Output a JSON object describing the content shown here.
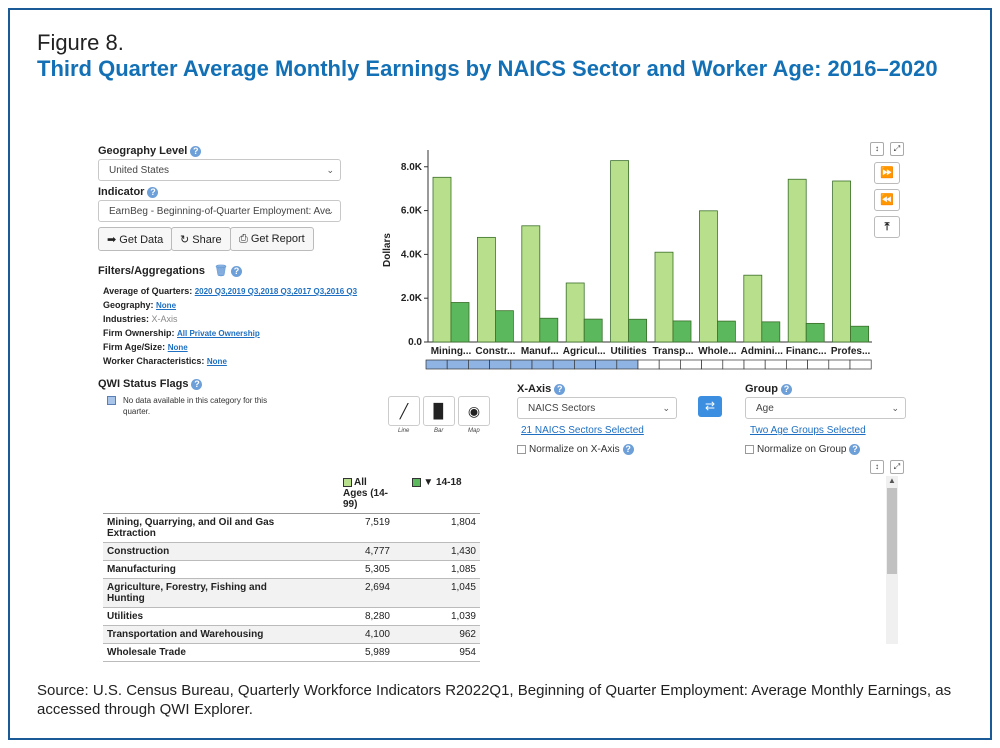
{
  "figure": {
    "label": "Figure 8.",
    "title": "Third Quarter Average Monthly Earnings by NAICS Sector and Worker Age: 2016–2020",
    "source": "Source: U.S. Census Bureau, Quarterly Workforce Indicators R2022Q1, Beginning of Quarter Employment: Average Monthly Earnings, as accessed through QWI Explorer."
  },
  "controls": {
    "geography_label": "Geography Level",
    "geography_value": "United States",
    "indicator_label": "Indicator",
    "indicator_value": "EarnBeg - Beginning-of-Quarter Employment: Ave",
    "get_data": "Get Data",
    "share": "Share",
    "get_report": "Get Report",
    "filters_label": "Filters/Aggregations",
    "filters": [
      {
        "key": "Average of Quarters:",
        "value": "2020 Q3,2019 Q3,2018 Q3,2017 Q3,2016 Q3",
        "style": "v"
      },
      {
        "key": "Geography:",
        "value": "None",
        "style": "v"
      },
      {
        "key": "Industries:",
        "value": "X-Axis",
        "style": "g"
      },
      {
        "key": "Firm Ownership:",
        "value": "All Private Ownership",
        "style": "v"
      },
      {
        "key": "Firm Age/Size:",
        "value": "None",
        "style": "v"
      },
      {
        "key": "Worker Characteristics:",
        "value": "None",
        "style": "v"
      }
    ],
    "status_label": "QWI Status Flags",
    "status_text_1": "No data available in this category for this",
    "status_text_2": "quarter."
  },
  "axis_controls": {
    "x_label": "X-Axis",
    "x_value": "NAICS Sectors",
    "x_link": "21 NAICS Sectors Selected",
    "x_normalize": "Normalize on X-Axis",
    "group_label": "Group",
    "group_value": "Age",
    "group_link": "Two Age Groups Selected",
    "group_normalize": "Normalize on Group",
    "chart_types": [
      "Line",
      "Bar",
      "Map"
    ]
  },
  "chart_data": {
    "type": "bar",
    "title": "",
    "xlabel": "",
    "ylabel": "Dollars",
    "ylim": [
      0,
      8400
    ],
    "yticks": [
      0,
      2000,
      4000,
      6000,
      8000
    ],
    "ytick_labels": [
      "0.0",
      "2.0K",
      "4.0K",
      "6.0K",
      "8.0K"
    ],
    "categories": [
      "Mining...",
      "Constr...",
      "Manuf...",
      "Agricul...",
      "Utilities",
      "Transp...",
      "Whole...",
      "Admini...",
      "Financ...",
      "Profes..."
    ],
    "series": [
      {
        "name": "All Ages (14-99)",
        "color": "#b8e08c",
        "values": [
          7519,
          4777,
          5305,
          2694,
          8280,
          4100,
          5989,
          3050,
          7430,
          7350
        ]
      },
      {
        "name": "14-18",
        "color": "#5cb85c",
        "values": [
          1804,
          1430,
          1085,
          1045,
          1039,
          962,
          954,
          920,
          850,
          720
        ]
      }
    ]
  },
  "table": {
    "headers": [
      "All Ages (14-99)",
      "▼ 14-18"
    ],
    "header_colors": [
      "#b8e08c",
      "#5cb85c"
    ],
    "rows": [
      [
        "Mining, Quarrying, and Oil and Gas Extraction",
        "7,519",
        "1,804"
      ],
      [
        "Construction",
        "4,777",
        "1,430"
      ],
      [
        "Manufacturing",
        "5,305",
        "1,085"
      ],
      [
        "Agriculture, Forestry, Fishing and Hunting",
        "2,694",
        "1,045"
      ],
      [
        "Utilities",
        "8,280",
        "1,039"
      ],
      [
        "Transportation and Warehousing",
        "4,100",
        "962"
      ],
      [
        "Wholesale Trade",
        "5,989",
        "954"
      ]
    ]
  }
}
